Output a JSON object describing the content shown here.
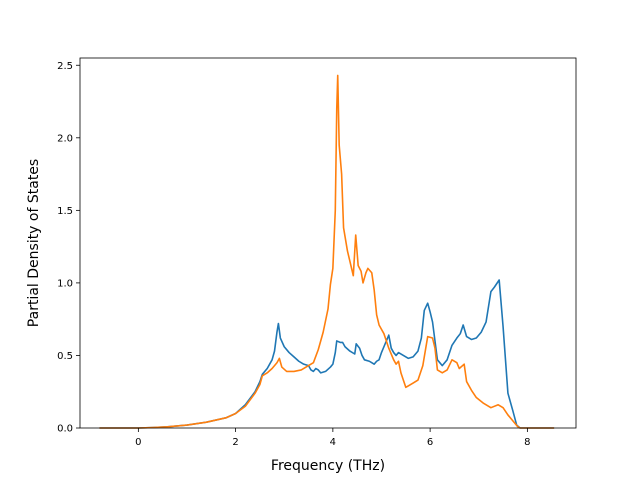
{
  "chart_data": {
    "type": "line",
    "title": "",
    "xlabel": "Frequency (THz)",
    "ylabel": "Partial Density of States",
    "xlim": [
      -1.2,
      9.0
    ],
    "ylim": [
      0.0,
      2.55
    ],
    "xticks": [
      0,
      2,
      4,
      6,
      8
    ],
    "xtick_labels": [
      "0",
      "2",
      "4",
      "6",
      "8"
    ],
    "yticks": [
      0.0,
      0.5,
      1.0,
      1.5,
      2.0,
      2.5
    ],
    "ytick_labels": [
      "0.0",
      "0.5",
      "1.0",
      "1.5",
      "2.0",
      "2.5"
    ],
    "grid": false,
    "legend": "none",
    "series": [
      {
        "color": "#1f77b4",
        "points": [
          [
            -0.8,
            0.0
          ],
          [
            -0.2,
            0.0
          ],
          [
            0.0,
            0.0
          ],
          [
            0.3,
            0.003
          ],
          [
            0.6,
            0.008
          ],
          [
            1.0,
            0.02
          ],
          [
            1.4,
            0.04
          ],
          [
            1.8,
            0.07
          ],
          [
            2.0,
            0.1
          ],
          [
            2.2,
            0.16
          ],
          [
            2.4,
            0.25
          ],
          [
            2.5,
            0.32
          ],
          [
            2.55,
            0.37
          ],
          [
            2.65,
            0.41
          ],
          [
            2.75,
            0.47
          ],
          [
            2.8,
            0.53
          ],
          [
            2.85,
            0.66
          ],
          [
            2.88,
            0.72
          ],
          [
            2.92,
            0.62
          ],
          [
            3.0,
            0.56
          ],
          [
            3.1,
            0.52
          ],
          [
            3.2,
            0.49
          ],
          [
            3.3,
            0.46
          ],
          [
            3.4,
            0.44
          ],
          [
            3.5,
            0.43
          ],
          [
            3.55,
            0.4
          ],
          [
            3.6,
            0.39
          ],
          [
            3.65,
            0.41
          ],
          [
            3.7,
            0.4
          ],
          [
            3.75,
            0.38
          ],
          [
            3.85,
            0.39
          ],
          [
            3.95,
            0.42
          ],
          [
            4.0,
            0.44
          ],
          [
            4.05,
            0.52
          ],
          [
            4.08,
            0.6
          ],
          [
            4.15,
            0.59
          ],
          [
            4.2,
            0.59
          ],
          [
            4.25,
            0.56
          ],
          [
            4.35,
            0.53
          ],
          [
            4.45,
            0.51
          ],
          [
            4.48,
            0.58
          ],
          [
            4.55,
            0.55
          ],
          [
            4.6,
            0.5
          ],
          [
            4.65,
            0.47
          ],
          [
            4.75,
            0.46
          ],
          [
            4.8,
            0.45
          ],
          [
            4.85,
            0.44
          ],
          [
            4.9,
            0.46
          ],
          [
            4.95,
            0.47
          ],
          [
            5.0,
            0.52
          ],
          [
            5.05,
            0.56
          ],
          [
            5.1,
            0.6
          ],
          [
            5.15,
            0.64
          ],
          [
            5.2,
            0.55
          ],
          [
            5.25,
            0.52
          ],
          [
            5.3,
            0.5
          ],
          [
            5.35,
            0.52
          ],
          [
            5.45,
            0.5
          ],
          [
            5.55,
            0.48
          ],
          [
            5.65,
            0.49
          ],
          [
            5.75,
            0.53
          ],
          [
            5.82,
            0.62
          ],
          [
            5.88,
            0.81
          ],
          [
            5.95,
            0.86
          ],
          [
            6.0,
            0.8
          ],
          [
            6.05,
            0.73
          ],
          [
            6.1,
            0.6
          ],
          [
            6.15,
            0.47
          ],
          [
            6.25,
            0.43
          ],
          [
            6.35,
            0.47
          ],
          [
            6.45,
            0.57
          ],
          [
            6.55,
            0.62
          ],
          [
            6.62,
            0.65
          ],
          [
            6.68,
            0.71
          ],
          [
            6.75,
            0.63
          ],
          [
            6.85,
            0.61
          ],
          [
            6.95,
            0.62
          ],
          [
            7.05,
            0.66
          ],
          [
            7.15,
            0.73
          ],
          [
            7.25,
            0.94
          ],
          [
            7.32,
            0.97
          ],
          [
            7.42,
            1.02
          ],
          [
            7.5,
            0.7
          ],
          [
            7.6,
            0.24
          ],
          [
            7.7,
            0.12
          ],
          [
            7.78,
            0.02
          ],
          [
            7.85,
            0.0
          ],
          [
            8.0,
            0.0
          ],
          [
            8.55,
            0.0
          ]
        ]
      },
      {
        "color": "#ff7f0e",
        "points": [
          [
            -0.8,
            0.0
          ],
          [
            -0.2,
            0.0
          ],
          [
            0.0,
            0.0
          ],
          [
            0.3,
            0.003
          ],
          [
            0.6,
            0.008
          ],
          [
            1.0,
            0.02
          ],
          [
            1.4,
            0.04
          ],
          [
            1.8,
            0.07
          ],
          [
            2.0,
            0.1
          ],
          [
            2.2,
            0.15
          ],
          [
            2.4,
            0.24
          ],
          [
            2.5,
            0.3
          ],
          [
            2.55,
            0.36
          ],
          [
            2.65,
            0.38
          ],
          [
            2.75,
            0.41
          ],
          [
            2.85,
            0.45
          ],
          [
            2.9,
            0.48
          ],
          [
            2.95,
            0.42
          ],
          [
            3.05,
            0.39
          ],
          [
            3.2,
            0.39
          ],
          [
            3.35,
            0.4
          ],
          [
            3.5,
            0.43
          ],
          [
            3.6,
            0.45
          ],
          [
            3.7,
            0.54
          ],
          [
            3.8,
            0.66
          ],
          [
            3.9,
            0.82
          ],
          [
            3.95,
            0.99
          ],
          [
            4.0,
            1.1
          ],
          [
            4.05,
            1.5
          ],
          [
            4.08,
            2.2
          ],
          [
            4.1,
            2.43
          ],
          [
            4.13,
            1.95
          ],
          [
            4.18,
            1.75
          ],
          [
            4.22,
            1.38
          ],
          [
            4.3,
            1.22
          ],
          [
            4.35,
            1.15
          ],
          [
            4.42,
            1.05
          ],
          [
            4.47,
            1.33
          ],
          [
            4.52,
            1.12
          ],
          [
            4.58,
            1.08
          ],
          [
            4.62,
            1.0
          ],
          [
            4.68,
            1.07
          ],
          [
            4.72,
            1.1
          ],
          [
            4.8,
            1.07
          ],
          [
            4.85,
            0.95
          ],
          [
            4.9,
            0.78
          ],
          [
            4.95,
            0.71
          ],
          [
            5.05,
            0.65
          ],
          [
            5.15,
            0.55
          ],
          [
            5.25,
            0.47
          ],
          [
            5.3,
            0.44
          ],
          [
            5.35,
            0.46
          ],
          [
            5.4,
            0.38
          ],
          [
            5.5,
            0.28
          ],
          [
            5.55,
            0.29
          ],
          [
            5.65,
            0.31
          ],
          [
            5.75,
            0.33
          ],
          [
            5.85,
            0.43
          ],
          [
            5.95,
            0.63
          ],
          [
            6.05,
            0.62
          ],
          [
            6.1,
            0.55
          ],
          [
            6.15,
            0.4
          ],
          [
            6.25,
            0.38
          ],
          [
            6.35,
            0.4
          ],
          [
            6.45,
            0.47
          ],
          [
            6.55,
            0.45
          ],
          [
            6.6,
            0.41
          ],
          [
            6.7,
            0.44
          ],
          [
            6.75,
            0.32
          ],
          [
            6.85,
            0.26
          ],
          [
            6.95,
            0.21
          ],
          [
            7.1,
            0.17
          ],
          [
            7.25,
            0.14
          ],
          [
            7.4,
            0.16
          ],
          [
            7.5,
            0.14
          ],
          [
            7.6,
            0.09
          ],
          [
            7.7,
            0.05
          ],
          [
            7.8,
            0.01
          ],
          [
            7.85,
            0.0
          ],
          [
            8.0,
            0.0
          ],
          [
            8.55,
            0.0
          ]
        ]
      }
    ]
  }
}
